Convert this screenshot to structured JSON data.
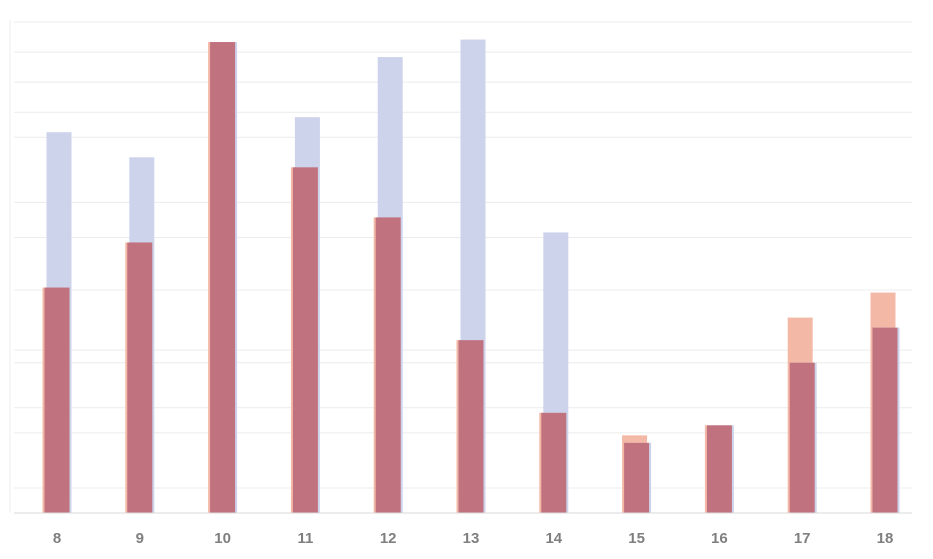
{
  "chart_data": {
    "type": "bar",
    "categories": [
      "8",
      "9",
      "10",
      "11",
      "12",
      "13",
      "14",
      "15",
      "16",
      "17",
      "18"
    ],
    "series": [
      {
        "color": "#ccd3ea",
        "values": [
          7.6,
          7.1,
          9.4,
          7.9,
          9.1,
          9.45,
          5.6,
          1.4,
          1.75,
          3.0,
          3.7
        ]
      },
      {
        "color": "#f4b8a6",
        "values": [
          4.5,
          5.4,
          9.4,
          6.9,
          5.9,
          3.45,
          2.0,
          1.55,
          1.75,
          3.9,
          4.4
        ]
      }
    ],
    "overlap_color": "#c0727f",
    "ylim": [
      0,
      10
    ],
    "grid": true,
    "xlabel": "",
    "ylabel": ""
  }
}
